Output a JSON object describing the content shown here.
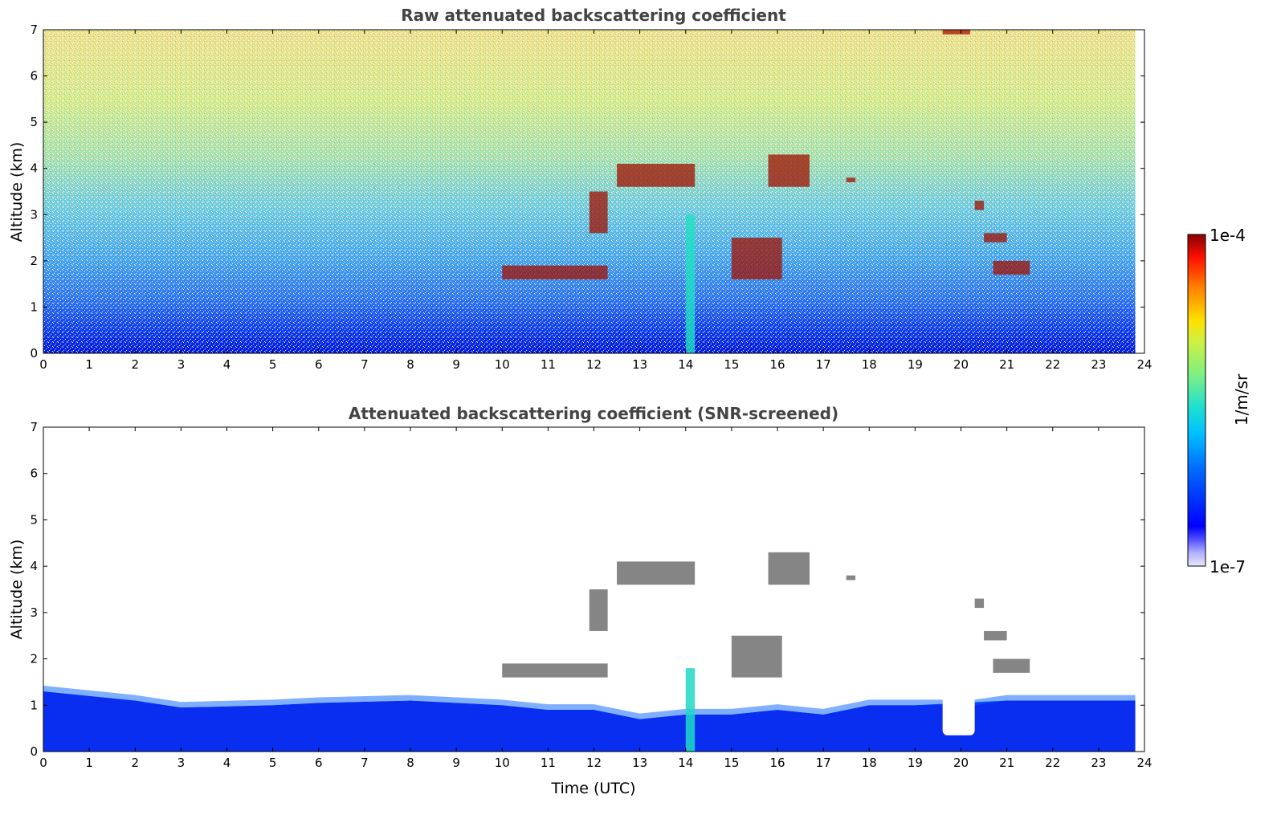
{
  "chart_data": [
    {
      "type": "heatmap",
      "title": "Raw attenuated backscattering coefficient",
      "xlabel": "",
      "ylabel": "Altitude (km)",
      "xlim": [
        0,
        24
      ],
      "ylim": [
        0,
        7
      ],
      "xticks": [
        "0",
        "1",
        "2",
        "3",
        "4",
        "5",
        "6",
        "7",
        "8",
        "9",
        "10",
        "11",
        "12",
        "13",
        "14",
        "15",
        "16",
        "17",
        "18",
        "19",
        "20",
        "21",
        "22",
        "23",
        "24"
      ],
      "yticks": [
        "0",
        "1",
        "2",
        "3",
        "4",
        "5",
        "6",
        "7"
      ],
      "data_end_time": 23.8,
      "description_layers": [
        {
          "feature": "boundary layer",
          "alt_top_km": 0.5,
          "level": "high (blue)"
        },
        {
          "feature": "noise",
          "alt_range_km": [
            1,
            7
          ],
          "level": "increasing with altitude (green-yellow)"
        }
      ],
      "cloud_features": [
        {
          "t": [
            12.5,
            14.2
          ],
          "alt": [
            3.6,
            4.1
          ]
        },
        {
          "t": [
            11.9,
            12.3
          ],
          "alt": [
            2.6,
            3.5
          ]
        },
        {
          "t": [
            15.8,
            16.7
          ],
          "alt": [
            3.6,
            4.3
          ]
        },
        {
          "t": [
            17.5,
            17.7
          ],
          "alt": [
            3.7,
            3.8
          ]
        },
        {
          "t": [
            20.3,
            20.5
          ],
          "alt": [
            3.1,
            3.3
          ]
        },
        {
          "t": [
            20.5,
            21.0
          ],
          "alt": [
            2.4,
            2.6
          ]
        },
        {
          "t": [
            20.7,
            21.5
          ],
          "alt": [
            1.7,
            2.0
          ]
        },
        {
          "t": [
            14.0,
            14.2
          ],
          "alt": [
            0,
            3.0
          ]
        },
        {
          "t": [
            19.6,
            20.2
          ],
          "alt": [
            6.9,
            7.0
          ]
        },
        {
          "t": [
            10.0,
            12.3
          ],
          "alt": [
            1.6,
            1.9
          ]
        },
        {
          "t": [
            15.0,
            16.1
          ],
          "alt": [
            1.6,
            2.5
          ]
        }
      ]
    },
    {
      "type": "heatmap",
      "title": "Attenuated backscattering coefficient (SNR-screened)",
      "xlabel": "Time (UTC)",
      "ylabel": "Altitude (km)",
      "xlim": [
        0,
        24
      ],
      "ylim": [
        0,
        7
      ],
      "xticks": [
        "0",
        "1",
        "2",
        "3",
        "4",
        "5",
        "6",
        "7",
        "8",
        "9",
        "10",
        "11",
        "12",
        "13",
        "14",
        "15",
        "16",
        "17",
        "18",
        "19",
        "20",
        "21",
        "22",
        "23",
        "24"
      ],
      "yticks": [
        "0",
        "1",
        "2",
        "3",
        "4",
        "5",
        "6",
        "7"
      ],
      "data_end_time": 23.8,
      "boundary_layer_top_km": [
        [
          0,
          1.3
        ],
        [
          2,
          1.1
        ],
        [
          3,
          0.95
        ],
        [
          5,
          1.0
        ],
        [
          6,
          1.05
        ],
        [
          8,
          1.1
        ],
        [
          10,
          1.0
        ],
        [
          11,
          0.9
        ],
        [
          12,
          0.9
        ],
        [
          13,
          0.7
        ],
        [
          14,
          0.8
        ],
        [
          15,
          0.8
        ],
        [
          16,
          0.9
        ],
        [
          17,
          0.8
        ],
        [
          18,
          1.0
        ],
        [
          19,
          1.0
        ],
        [
          19.6,
          1.0
        ],
        [
          20.3,
          1.0
        ],
        [
          21,
          1.1
        ],
        [
          22,
          1.1
        ],
        [
          23,
          1.1
        ],
        [
          23.8,
          1.1
        ]
      ],
      "gap": {
        "t": [
          19.6,
          20.3
        ],
        "alt_bottom_km": 0.35
      }
    }
  ],
  "colorbar": {
    "max_label": "1e-4",
    "min_label": "1e-7",
    "unit": "1/m/sr"
  }
}
